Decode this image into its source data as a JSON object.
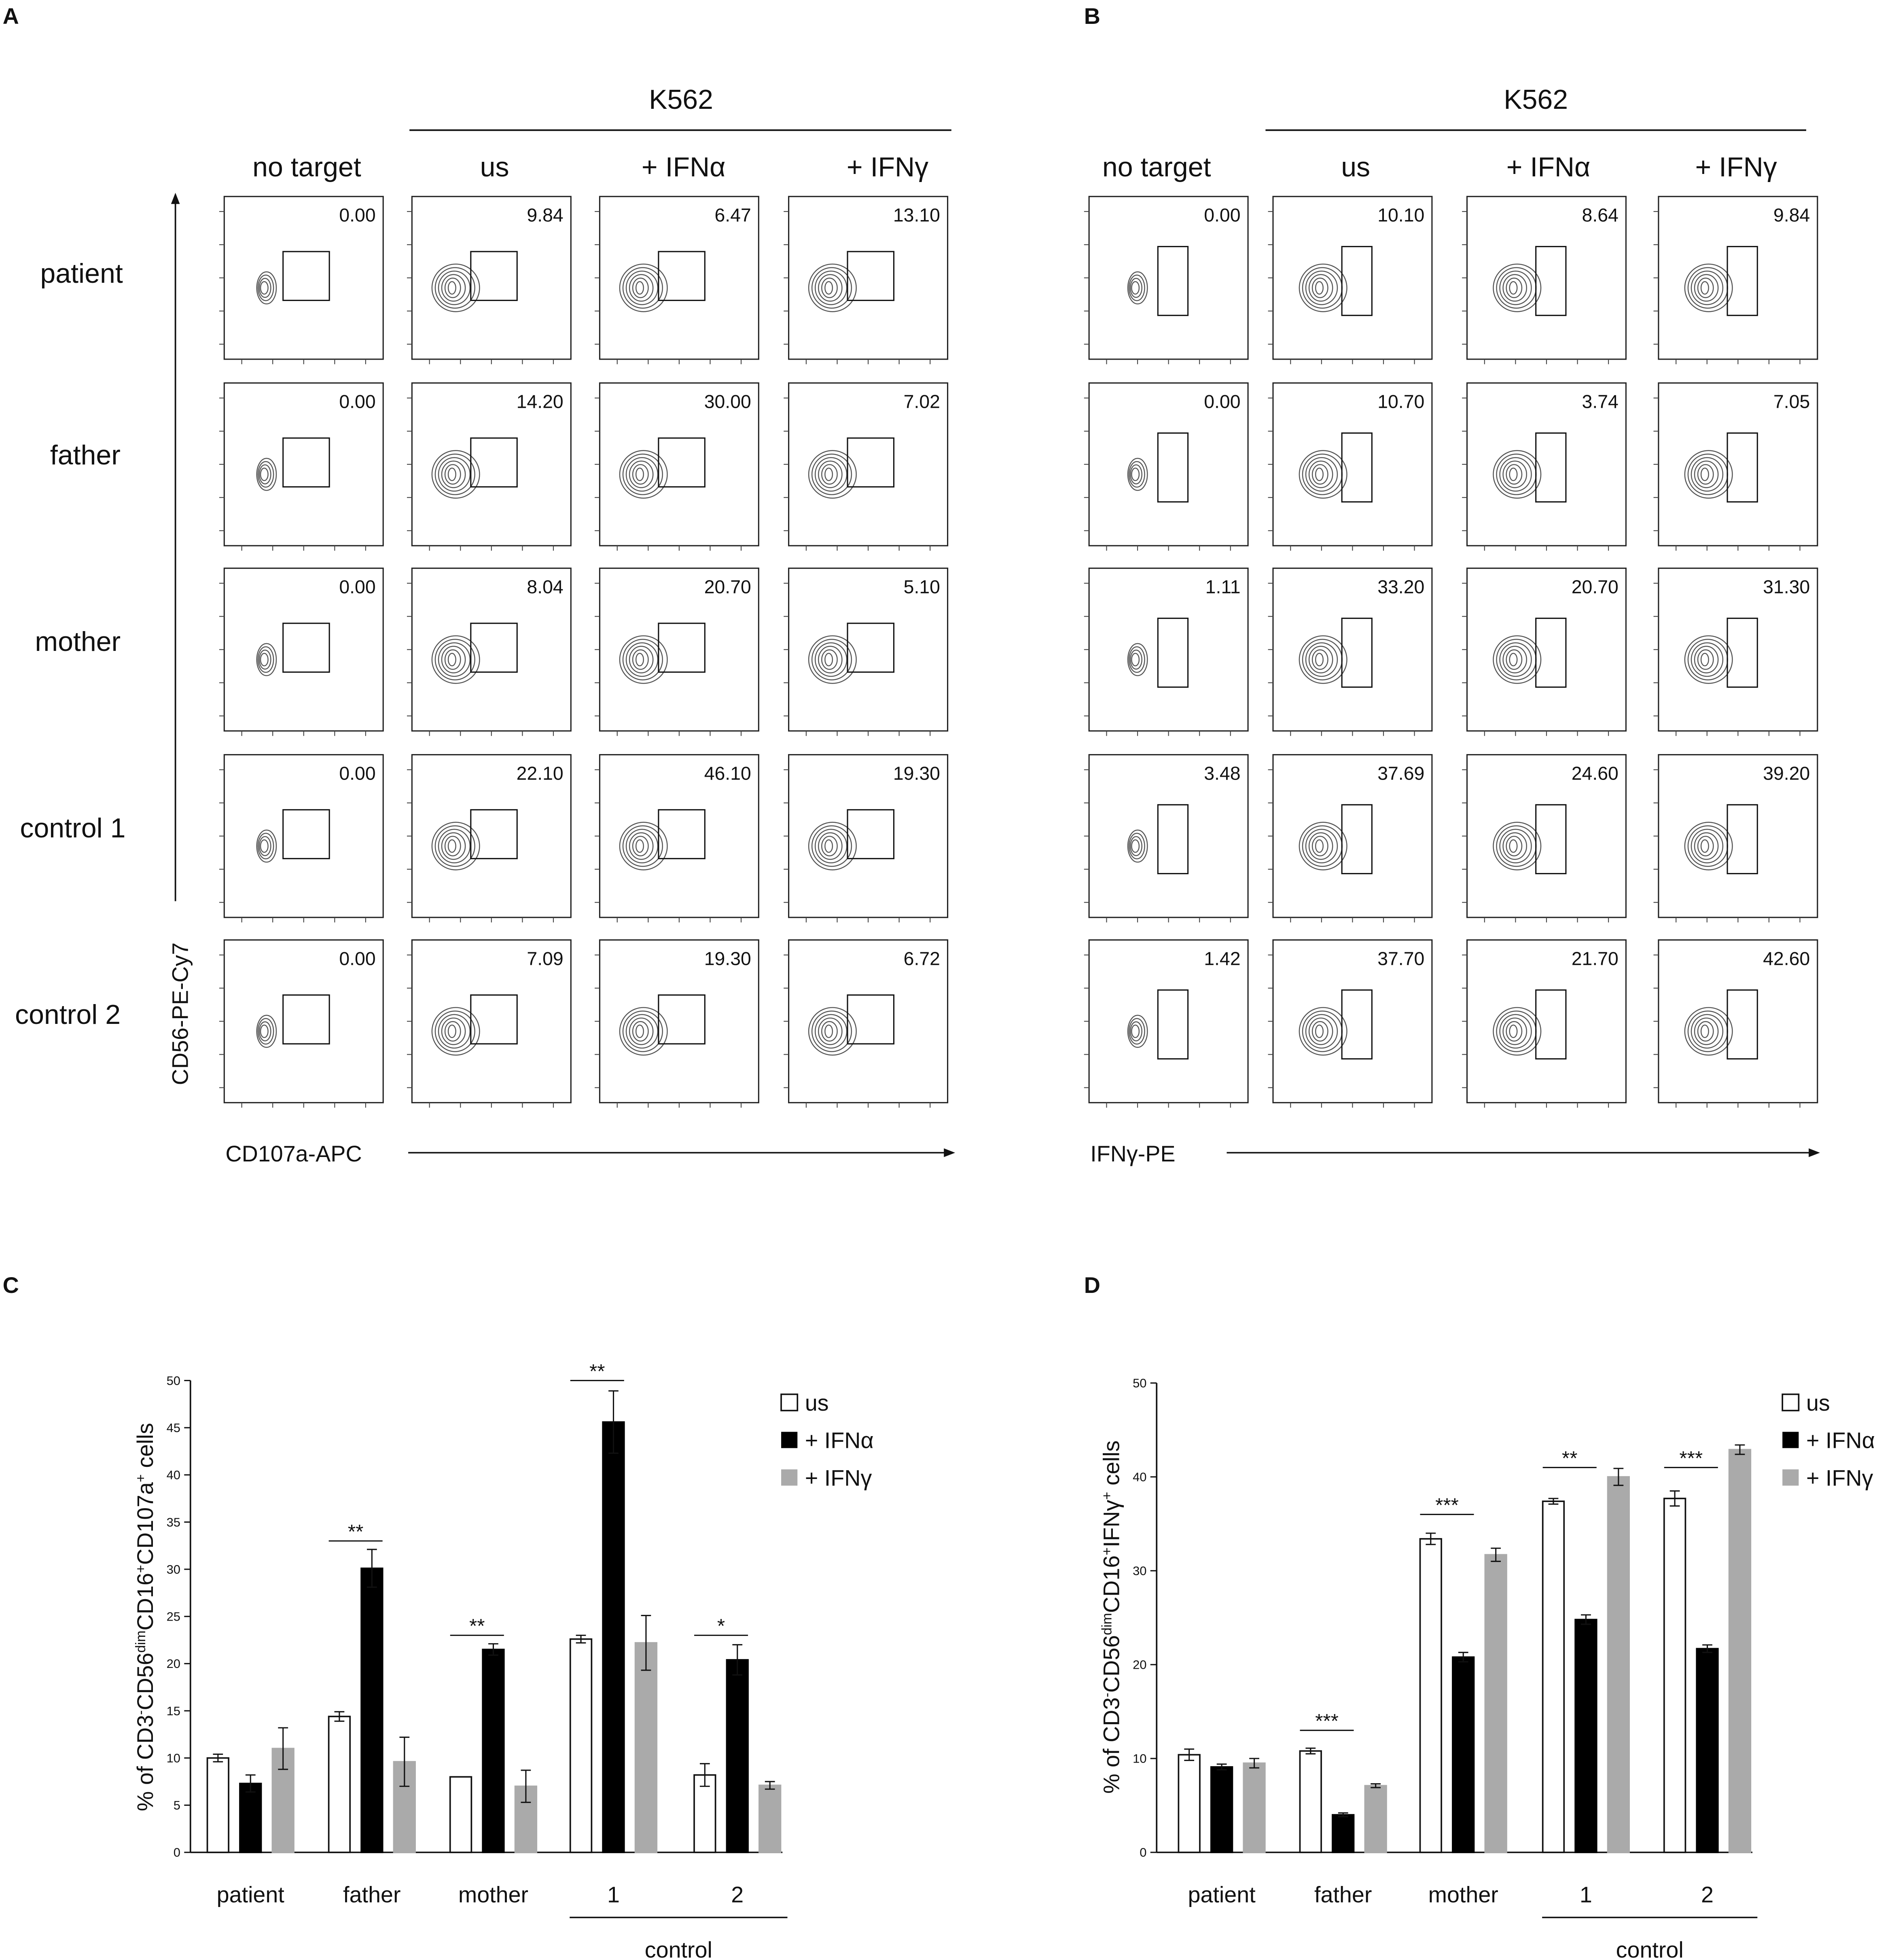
{
  "panel_letters": [
    "A",
    "B",
    "C",
    "D"
  ],
  "flow": {
    "target_label": "K562",
    "col_headers": [
      "no target",
      "us",
      "+ IFNα",
      "+ IFNγ"
    ],
    "row_labels": [
      "patient",
      "father",
      "mother",
      "control 1",
      "control 2"
    ],
    "y_axis_label": "CD56-PE-Cy7",
    "panel_A": {
      "x_axis_label": "CD107a-APC",
      "gate_values": [
        [
          "0.00",
          "9.84",
          "6.47",
          "13.10"
        ],
        [
          "0.00",
          "14.20",
          "30.00",
          "7.02"
        ],
        [
          "0.00",
          "8.04",
          "20.70",
          "5.10"
        ],
        [
          "0.00",
          "22.10",
          "46.10",
          "19.30"
        ],
        [
          "0.00",
          "7.09",
          "19.30",
          "6.72"
        ]
      ]
    },
    "panel_B": {
      "x_axis_label": "IFNγ-PE",
      "gate_values": [
        [
          "0.00",
          "10.10",
          "8.64",
          "9.84"
        ],
        [
          "0.00",
          "10.70",
          "3.74",
          "7.05"
        ],
        [
          "1.11",
          "33.20",
          "20.70",
          "31.30"
        ],
        [
          "3.48",
          "37.69",
          "24.60",
          "39.20"
        ],
        [
          "1.42",
          "37.70",
          "21.70",
          "42.60"
        ]
      ]
    }
  },
  "colors": {
    "us": "#ffffff",
    "ifna": "#000000",
    "ifng": "#aaaaaa",
    "axis": "#111111"
  },
  "chart_data": [
    {
      "type": "bar",
      "panel": "C",
      "ylabel": "% of CD3-CD56dimCD16+CD107a+ cells",
      "ylim": [
        0,
        50
      ],
      "yticks": [
        "0",
        "5",
        "10",
        "15",
        "20",
        "25",
        "30",
        "35",
        "40",
        "45",
        "50"
      ],
      "categories": [
        "patient",
        "father",
        "mother",
        "1",
        "2"
      ],
      "group_label": "control",
      "series": [
        {
          "name": "us",
          "values": [
            10.0,
            14.4,
            8.0,
            22.6,
            8.2
          ],
          "errors": [
            0.4,
            0.5,
            0.0,
            0.4,
            1.2
          ]
        },
        {
          "name": "+ IFNα",
          "values": [
            7.3,
            30.1,
            21.5,
            45.6,
            20.4
          ],
          "errors": [
            0.9,
            2.0,
            0.6,
            3.3,
            1.6
          ]
        },
        {
          "name": "+ IFNγ",
          "values": [
            11.0,
            9.6,
            7.0,
            22.2,
            7.1
          ],
          "errors": [
            2.2,
            2.6,
            1.7,
            2.9,
            0.4
          ]
        }
      ],
      "significance": [
        {
          "category": "father",
          "label": "**",
          "y": 33
        },
        {
          "category": "mother",
          "label": "**",
          "y": 23
        },
        {
          "category": "1",
          "label": "**",
          "y": 50
        },
        {
          "category": "2",
          "label": "*",
          "y": 23
        }
      ],
      "legend": "top-right"
    },
    {
      "type": "bar",
      "panel": "D",
      "ylabel": "% of CD3-CD56dimCD16+IFNγ+ cells",
      "ylim": [
        0,
        50
      ],
      "yticks": [
        "0",
        "10",
        "20",
        "30",
        "40",
        "50"
      ],
      "categories": [
        "patient",
        "father",
        "mother",
        "1",
        "2"
      ],
      "group_label": "control",
      "series": [
        {
          "name": "us",
          "values": [
            10.4,
            10.8,
            33.4,
            37.4,
            37.7
          ],
          "errors": [
            0.6,
            0.3,
            0.6,
            0.3,
            0.8
          ]
        },
        {
          "name": "+ IFNα",
          "values": [
            9.1,
            4.0,
            20.8,
            24.8,
            21.7
          ],
          "errors": [
            0.3,
            0.2,
            0.5,
            0.5,
            0.4
          ]
        },
        {
          "name": "+ IFNγ",
          "values": [
            9.5,
            7.1,
            31.7,
            40.0,
            42.9
          ],
          "errors": [
            0.5,
            0.2,
            0.7,
            0.9,
            0.5
          ]
        }
      ],
      "significance": [
        {
          "category": "father",
          "label": "***",
          "y": 13
        },
        {
          "category": "mother",
          "label": "***",
          "y": 36
        },
        {
          "category": "1",
          "label": "**",
          "y": 41
        },
        {
          "category": "2",
          "label": "***",
          "y": 41
        }
      ],
      "legend": "top-right"
    }
  ]
}
